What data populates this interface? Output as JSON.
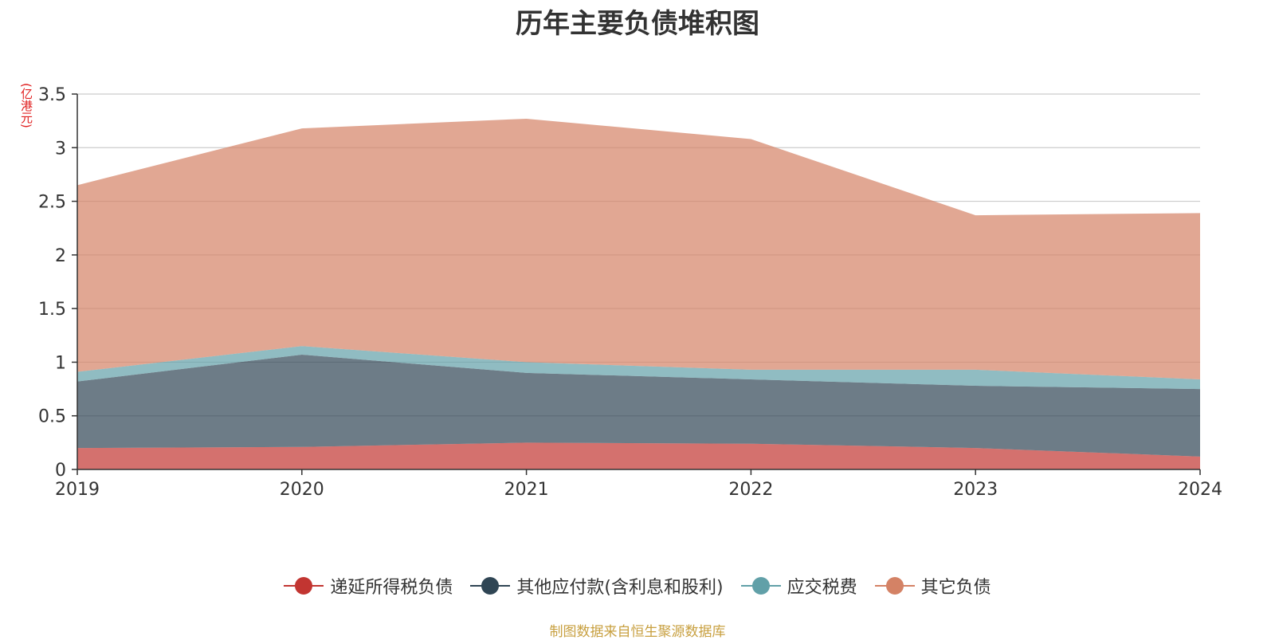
{
  "title": "历年主要负债堆积图",
  "unit_label": "(亿港元)",
  "source": "制图数据来自恒生聚源数据库",
  "chart_data": {
    "type": "area",
    "stacked": true,
    "title": "历年主要负债堆积图",
    "x": [
      "2019",
      "2020",
      "2021",
      "2022",
      "2023",
      "2024"
    ],
    "ylim": [
      0,
      3.5
    ],
    "yticks": [
      "0",
      "0.5",
      "1",
      "1.5",
      "2",
      "2.5",
      "3",
      "3.5"
    ],
    "ytick_values": [
      0,
      0.5,
      1,
      1.5,
      2,
      2.5,
      3,
      3.5
    ],
    "grid": true,
    "legend_position": "bottom",
    "series": [
      {
        "name": "递延所得税负债",
        "color": "#c23531",
        "values": [
          0.2,
          0.21,
          0.25,
          0.24,
          0.2,
          0.12
        ]
      },
      {
        "name": "其他应付款(含利息和股利)",
        "color": "#2f4554",
        "values": [
          0.62,
          0.86,
          0.65,
          0.6,
          0.58,
          0.63
        ]
      },
      {
        "name": "应交税费",
        "color": "#61a0a8",
        "values": [
          0.09,
          0.08,
          0.1,
          0.09,
          0.15,
          0.09
        ]
      },
      {
        "name": "其它负债",
        "color": "#d48265",
        "values": [
          1.74,
          2.03,
          2.27,
          2.15,
          1.44,
          1.55
        ]
      }
    ]
  }
}
